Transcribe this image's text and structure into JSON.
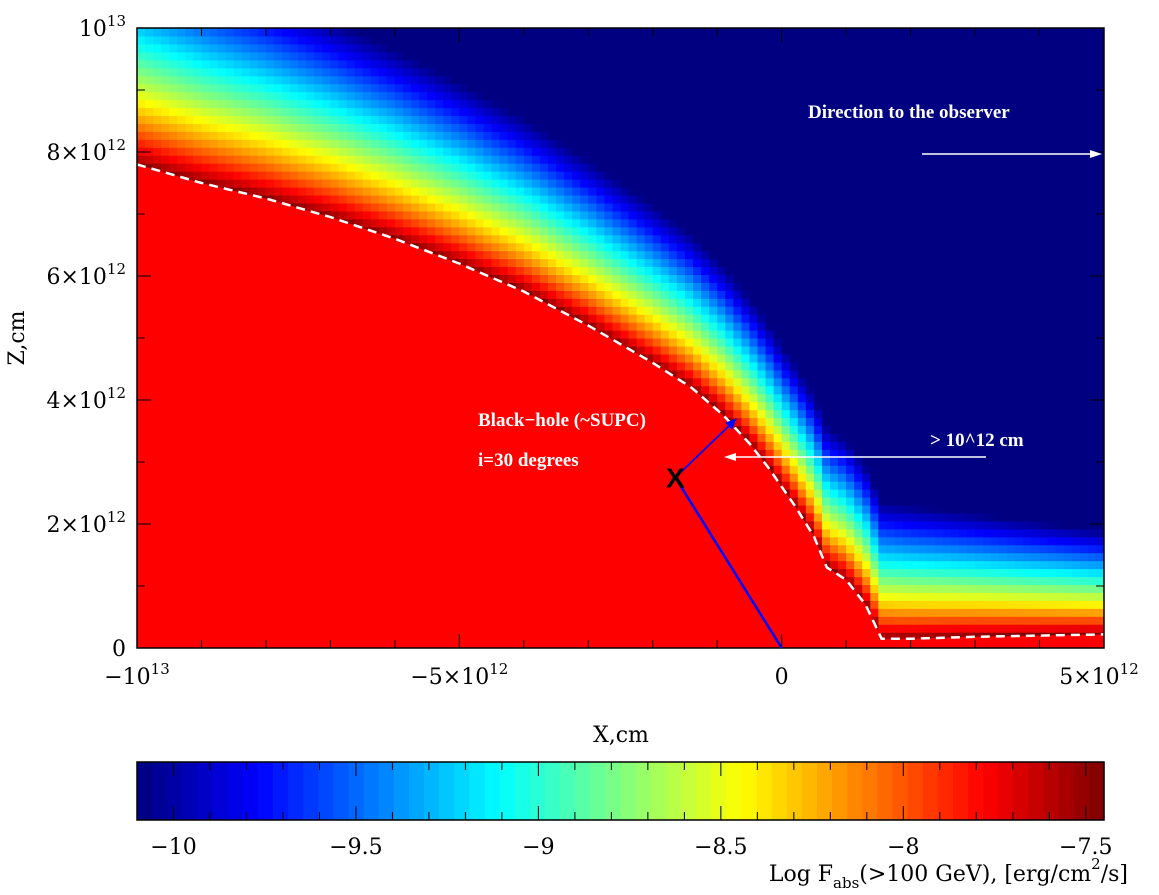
{
  "chart_data": {
    "type": "heatmap",
    "xlabel": "X,cm",
    "ylabel": "Z,cm",
    "xlim": [
      -10000000000000.0,
      5000000000000.0
    ],
    "ylim": [
      0,
      10000000000000.0
    ],
    "x_ticks": [
      {
        "value": -10000000000000.0,
        "base": "−10",
        "exp": "13"
      },
      {
        "value": -5000000000000.0,
        "base": "−5×10",
        "exp": "12"
      },
      {
        "value": 0,
        "base": "0",
        "exp": ""
      },
      {
        "value": 5000000000000.0,
        "base": "5×10",
        "exp": "12"
      }
    ],
    "y_ticks": [
      {
        "value": 0,
        "base": "0",
        "exp": ""
      },
      {
        "value": 2000000000000.0,
        "base": "2×10",
        "exp": "12"
      },
      {
        "value": 4000000000000.0,
        "base": "4×10",
        "exp": "12"
      },
      {
        "value": 6000000000000.0,
        "base": "6×10",
        "exp": "12"
      },
      {
        "value": 8000000000000.0,
        "base": "8×10",
        "exp": "12"
      },
      {
        "value": 10000000000000.0,
        "base": "10",
        "exp": "13"
      }
    ],
    "colorbar": {
      "label_prefix": "Log F",
      "label_sub": "abs",
      "label_mid": "(>100 GeV), [erg/cm",
      "label_sup": "2",
      "label_suffix": "/s]",
      "range": [
        -10.1,
        -7.45
      ],
      "ticks": [
        {
          "value": -10,
          "label": "−10"
        },
        {
          "value": -9.5,
          "label": "−9.5"
        },
        {
          "value": -9,
          "label": "−9"
        },
        {
          "value": -8.5,
          "label": "−8.5"
        },
        {
          "value": -8,
          "label": "−8"
        },
        {
          "value": -7.5,
          "label": "−7.5"
        }
      ]
    },
    "annotations": {
      "observer_direction": "Direction to the observer",
      "distance": "> 10^12 cm",
      "black_hole": "Black−hole (~SUPC)",
      "inclination": "i=30 degrees",
      "marker": "X"
    },
    "colors": {
      "saturated": "#ff0000",
      "low": "#000040",
      "boundary": "#ffffff",
      "vector": "#0000ff"
    },
    "boundary_curve": [
      [
        -10000000000000.0,
        7800000000000.0
      ],
      [
        -9000000000000.0,
        7500000000000.0
      ],
      [
        -8000000000000.0,
        7250000000000.0
      ],
      [
        -7000000000000.0,
        6950000000000.0
      ],
      [
        -6000000000000.0,
        6600000000000.0
      ],
      [
        -5000000000000.0,
        6200000000000.0
      ],
      [
        -4000000000000.0,
        5750000000000.0
      ],
      [
        -3000000000000.0,
        5200000000000.0
      ],
      [
        -2000000000000.0,
        4600000000000.0
      ],
      [
        -1400000000000.0,
        4200000000000.0
      ],
      [
        -900000000000.0,
        3750000000000.0
      ],
      [
        -500000000000.0,
        3300000000000.0
      ],
      [
        -200000000000.0,
        2900000000000.0
      ],
      [
        200000000000.0,
        2300000000000.0
      ],
      [
        500000000000.0,
        1800000000000.0
      ],
      [
        700000000000.0,
        1300000000000.0
      ],
      [
        1000000000000.0,
        1100000000000.0
      ],
      [
        1300000000000.0,
        700000000000.0
      ],
      [
        1550000000000.0,
        150000000000.0
      ],
      [
        2000000000000.0,
        150000000000.0
      ],
      [
        3000000000000.0,
        180000000000.0
      ],
      [
        4000000000000.0,
        200000000000.0
      ],
      [
        5000000000000.0,
        220000000000.0
      ]
    ],
    "black_hole_position": [
      -1650000000000.0,
      2750000000000.0
    ],
    "origin_point": [
      0,
      0
    ],
    "direction_tip": [
      -700000000000.0,
      3700000000000.0
    ]
  }
}
